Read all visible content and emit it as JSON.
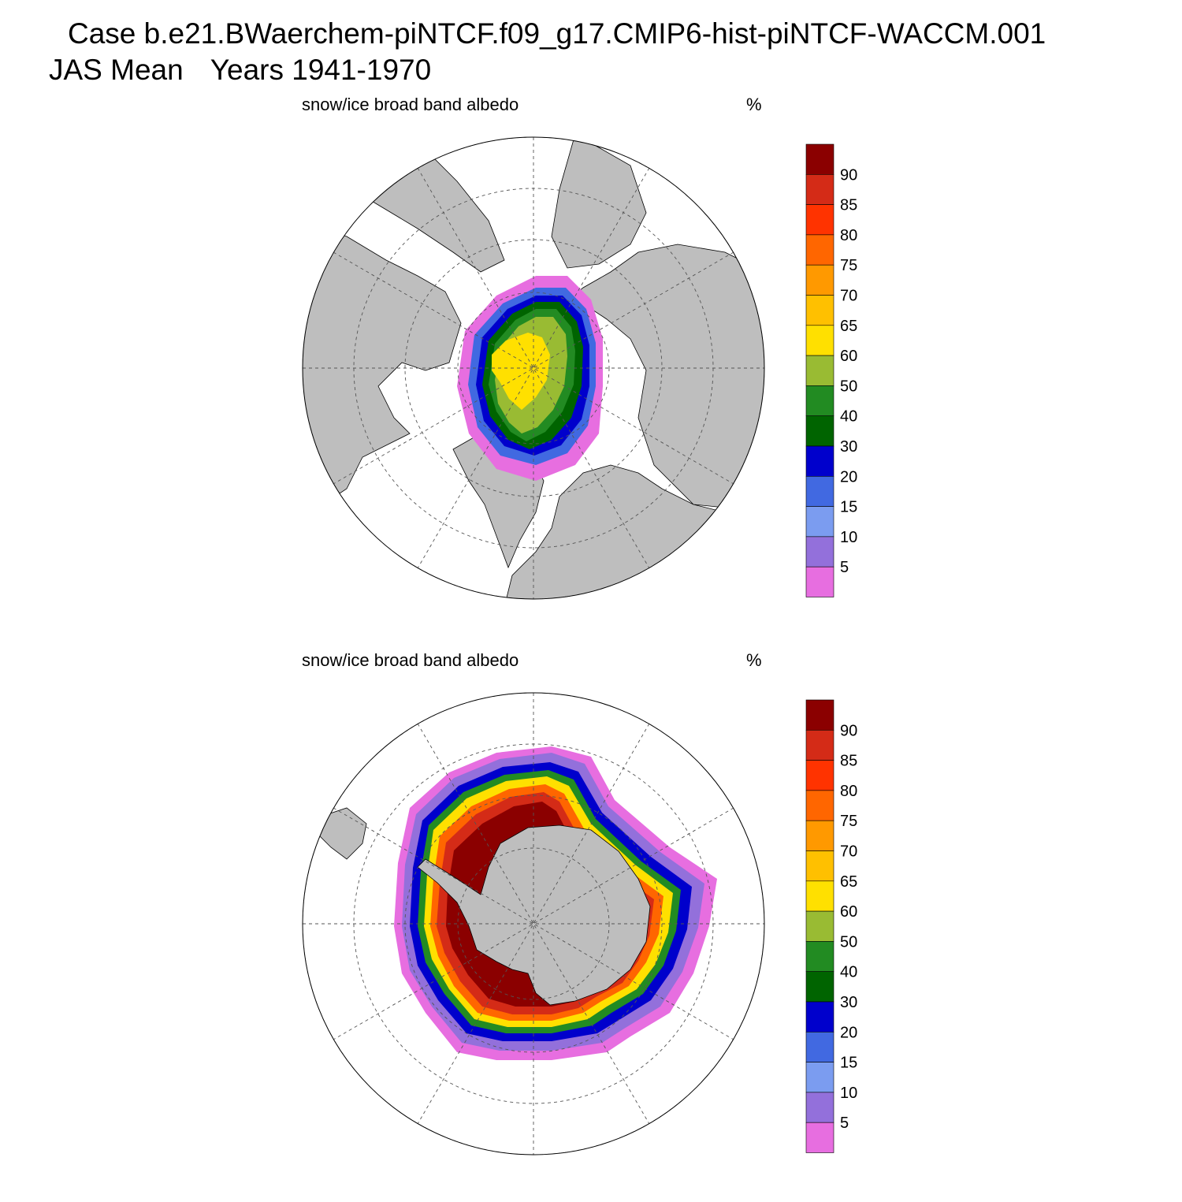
{
  "header": {
    "case_line": "Case b.e21.BWaerchem-piNTCF.f09_g17.CMIP6-hist-piNTCF-WACCM.001",
    "season": "JAS Mean",
    "years": "Years 1941-1970"
  },
  "panels": [
    {
      "title": "snow/ice broad band albedo",
      "units": "%",
      "hemisphere": "north"
    },
    {
      "title": "snow/ice broad band albedo",
      "units": "%",
      "hemisphere": "south"
    }
  ],
  "colorbar": {
    "levels": [
      "90",
      "85",
      "80",
      "75",
      "70",
      "65",
      "60",
      "50",
      "40",
      "30",
      "20",
      "15",
      "10",
      "5"
    ],
    "colors": [
      "#8b0000",
      "#d42b17",
      "#ff3300",
      "#ff6600",
      "#ff9900",
      "#ffc000",
      "#ffe000",
      "#99bb33",
      "#228b22",
      "#006400",
      "#0000cc",
      "#4169e1",
      "#7b9cf0",
      "#9370db",
      "#e76ee0"
    ]
  },
  "style": {
    "land": "#bebebe",
    "grid": "#555555",
    "ocean": "#ffffff"
  }
}
